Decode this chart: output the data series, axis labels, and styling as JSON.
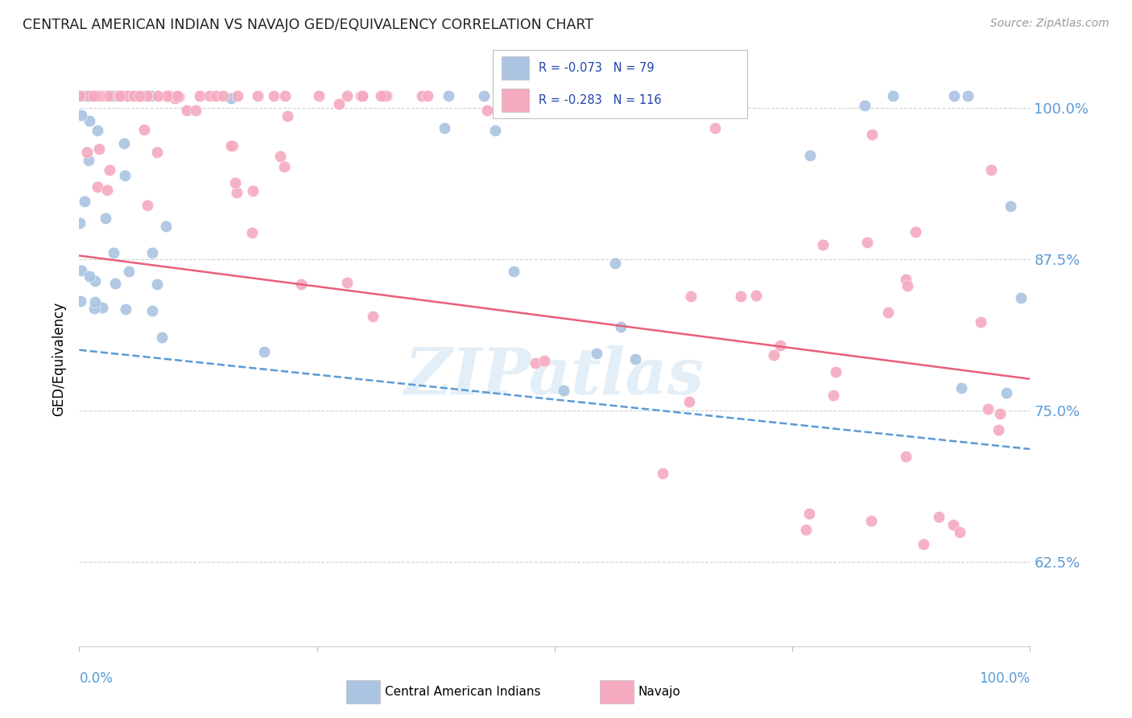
{
  "title": "CENTRAL AMERICAN INDIAN VS NAVAJO GED/EQUIVALENCY CORRELATION CHART",
  "source": "Source: ZipAtlas.com",
  "ylabel": "GED/Equivalency",
  "yticks": [
    "62.5%",
    "75.0%",
    "87.5%",
    "100.0%"
  ],
  "ytick_vals": [
    0.625,
    0.75,
    0.875,
    1.0
  ],
  "xlim": [
    0.0,
    1.0
  ],
  "ylim": [
    0.555,
    1.03
  ],
  "blue_color": "#aac4e2",
  "pink_color": "#f5aabf",
  "trendline_blue_color": "#5b9bd5",
  "trendline_pink_color": "#e8607a",
  "trendline_blue_start_y": 0.8,
  "trendline_blue_end_y": 0.718,
  "trendline_pink_start_y": 0.878,
  "trendline_pink_end_y": 0.776,
  "watermark": "ZIPatlas",
  "right_tick_color": "#5b9bd5",
  "grid_color": "#d0d0d0",
  "source_color": "#999999",
  "title_color": "#222222"
}
